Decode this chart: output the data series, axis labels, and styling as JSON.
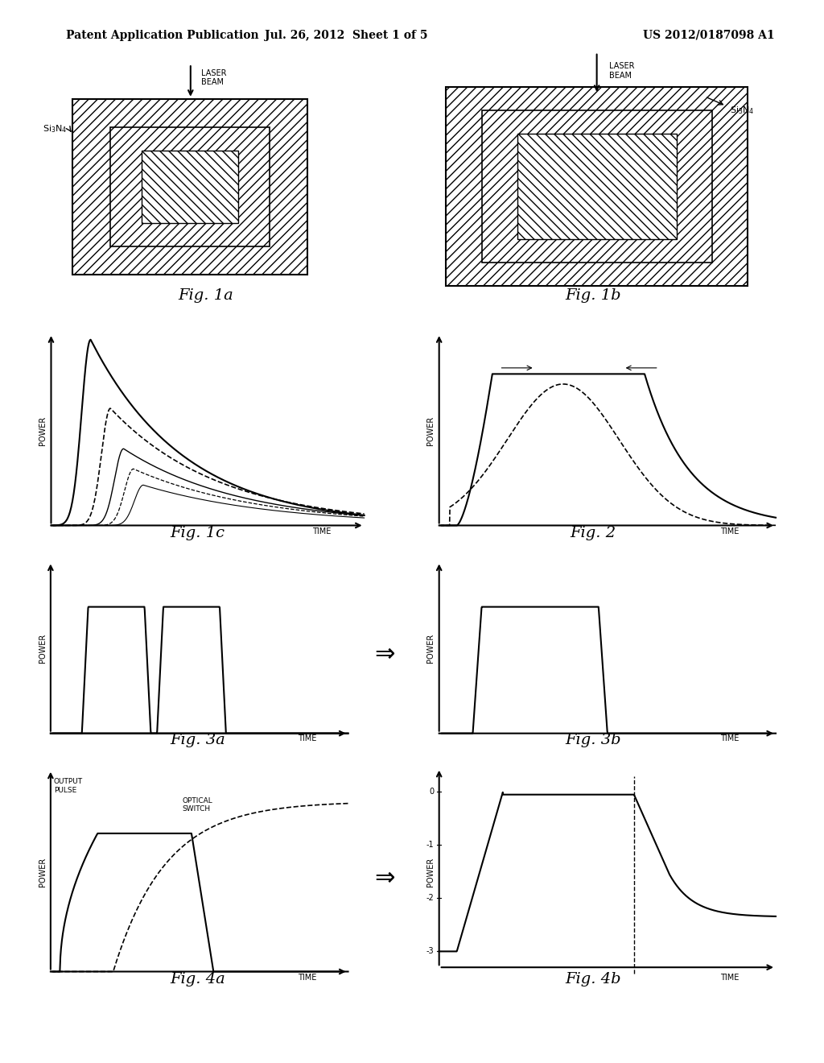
{
  "header_left": "Patent Application Publication",
  "header_mid": "Jul. 26, 2012  Sheet 1 of 5",
  "header_right": "US 2012/0187098 A1",
  "bg_color": "#ffffff",
  "fig_labels": [
    "Fig. 1a",
    "Fig. 1b",
    "Fig. 1c",
    "Fig. 2",
    "Fig. 3a",
    "Fig. 3b",
    "Fig. 4a",
    "Fig. 4b"
  ]
}
